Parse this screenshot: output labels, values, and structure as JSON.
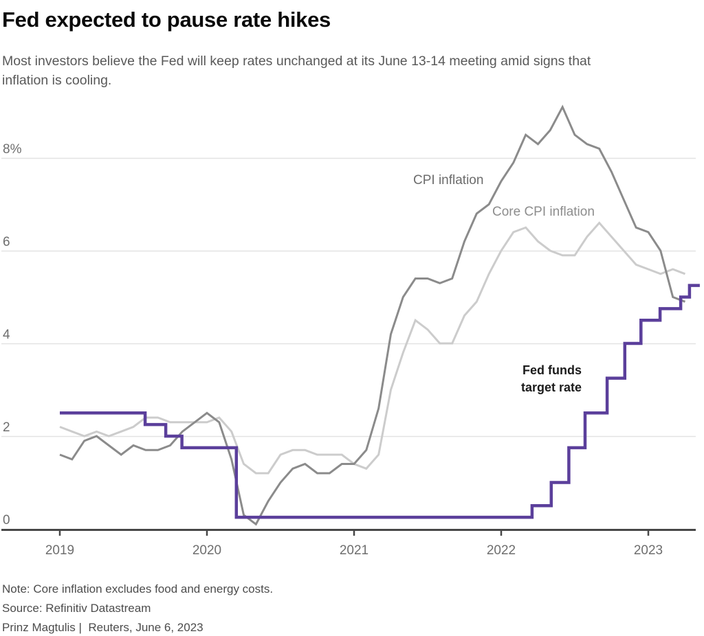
{
  "chart_data": {
    "type": "line",
    "title": "Fed expected to pause rate hikes",
    "subtitle_lines": [
      "Most investors believe the Fed will keep rates unchanged at its June 13-14 meeting amid signs that",
      "inflation is cooling."
    ],
    "xlabel": "",
    "ylabel": "",
    "ylim": [
      0,
      9.3
    ],
    "xlim": [
      2018.7,
      2023.45
    ],
    "grid": "horizontal-only",
    "legend_position": "inline-labels",
    "y_ticks": [
      {
        "label": "8%",
        "value": 8
      },
      {
        "label": "6",
        "value": 6
      },
      {
        "label": "4",
        "value": 4
      },
      {
        "label": "2",
        "value": 2
      },
      {
        "label": "0",
        "value": 0
      }
    ],
    "x_ticks": [
      {
        "label": "2019",
        "value": 2019
      },
      {
        "label": "2020",
        "value": 2020
      },
      {
        "label": "2021",
        "value": 2021
      },
      {
        "label": "2022",
        "value": 2022
      },
      {
        "label": "2023",
        "value": 2023
      }
    ],
    "series": [
      {
        "name": "Core CPI inflation",
        "type": "line",
        "color": "#cccccc",
        "unit": "% year-over-year",
        "x_start": 2019,
        "x_step_months": 1,
        "values": [
          2.2,
          2.1,
          2.0,
          2.1,
          2.0,
          2.1,
          2.2,
          2.4,
          2.4,
          2.3,
          2.3,
          2.3,
          2.3,
          2.4,
          2.1,
          1.4,
          1.2,
          1.2,
          1.6,
          1.7,
          1.7,
          1.6,
          1.6,
          1.6,
          1.4,
          1.3,
          1.6,
          3.0,
          3.8,
          4.5,
          4.3,
          4.0,
          4.0,
          4.6,
          4.9,
          5.5,
          6.0,
          6.4,
          6.5,
          6.2,
          6.0,
          5.9,
          5.9,
          6.3,
          6.6,
          6.3,
          6.0,
          5.7,
          5.6,
          5.5,
          5.6,
          5.5
        ]
      },
      {
        "name": "CPI inflation",
        "type": "line",
        "color": "#8b8b8b",
        "unit": "% year-over-year",
        "x_start": 2019,
        "x_step_months": 1,
        "values": [
          1.6,
          1.5,
          1.9,
          2.0,
          1.8,
          1.6,
          1.8,
          1.7,
          1.7,
          1.8,
          2.1,
          2.3,
          2.5,
          2.3,
          1.5,
          0.3,
          0.1,
          0.6,
          1.0,
          1.3,
          1.4,
          1.2,
          1.2,
          1.4,
          1.4,
          1.7,
          2.6,
          4.2,
          5.0,
          5.4,
          5.4,
          5.3,
          5.4,
          6.2,
          6.8,
          7.0,
          7.5,
          7.9,
          8.5,
          8.3,
          8.6,
          9.1,
          8.5,
          8.3,
          8.2,
          7.7,
          7.1,
          6.5,
          6.4,
          6.0,
          5.0,
          4.9
        ]
      },
      {
        "name": "Fed funds target rate",
        "type": "step",
        "color": "#5b3f9b",
        "unit": "% upper bound of target range",
        "points": [
          [
            2019.0,
            2.5
          ],
          [
            2019.58,
            2.25
          ],
          [
            2019.72,
            2.0
          ],
          [
            2019.83,
            1.75
          ],
          [
            2020.2,
            0.25
          ],
          [
            2022.21,
            0.5
          ],
          [
            2022.34,
            1.0
          ],
          [
            2022.46,
            1.75
          ],
          [
            2022.57,
            2.5
          ],
          [
            2022.72,
            3.25
          ],
          [
            2022.84,
            4.0
          ],
          [
            2022.95,
            4.5
          ],
          [
            2023.08,
            4.75
          ],
          [
            2023.22,
            5.0
          ],
          [
            2023.28,
            5.25
          ],
          [
            2023.35,
            5.25
          ]
        ]
      }
    ]
  },
  "annotations": {
    "cpi": "CPI inflation",
    "core": "Core CPI inflation",
    "fed_line1": "Fed funds",
    "fed_line2": "target rate"
  },
  "footer": {
    "note": "Note: Core inflation excludes food and energy costs.",
    "source": "Source: Refinitiv Datastream",
    "byline": "Prinz Magtulis |  Reuters, June 6, 2023"
  },
  "colors": {
    "grid": "#e3e3e3",
    "axis": "#474747",
    "tick_label": "#6e6e6e"
  }
}
